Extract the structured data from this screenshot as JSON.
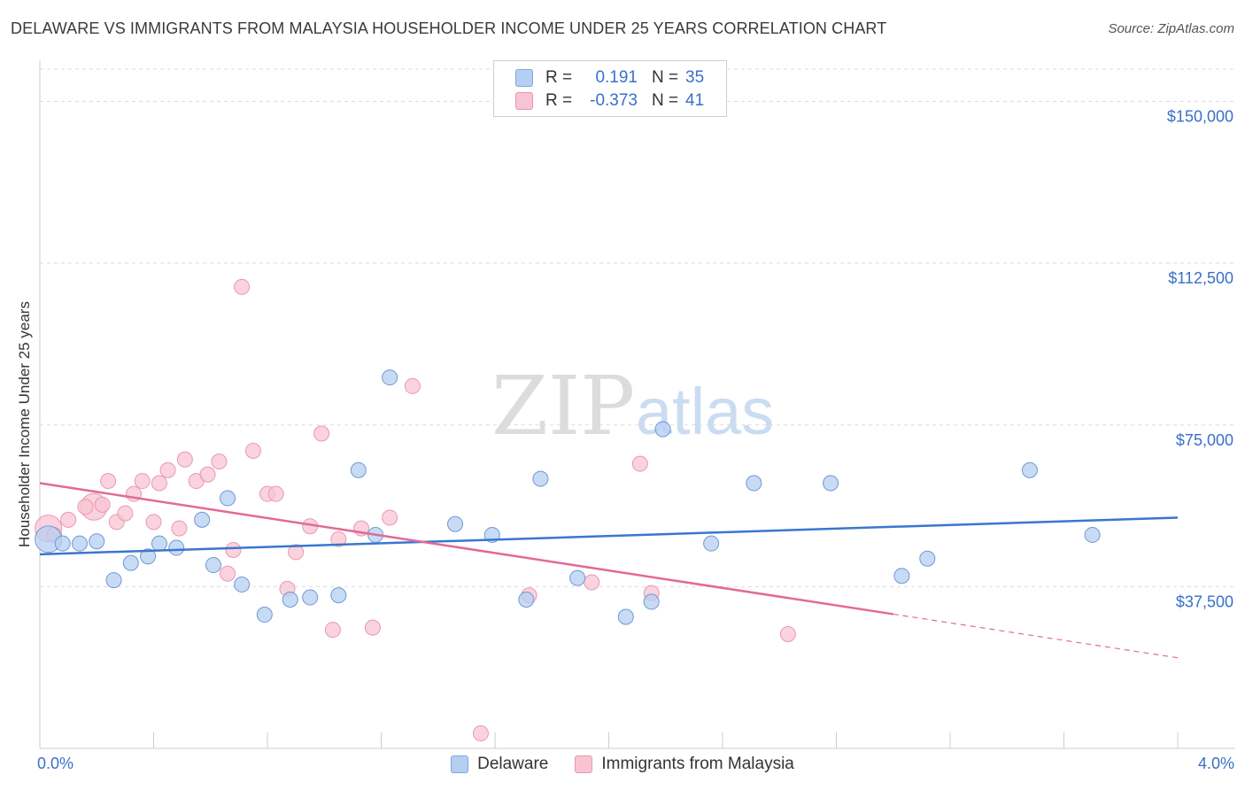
{
  "title": "DELAWARE VS IMMIGRANTS FROM MALAYSIA HOUSEHOLDER INCOME UNDER 25 YEARS CORRELATION CHART",
  "source": "Source: ZipAtlas.com",
  "watermark": {
    "part1": "ZIP",
    "part2": "atlas"
  },
  "legend": {
    "r_label": "R =",
    "n_label": "N =",
    "rows": [
      {
        "r": "0.191",
        "n": "35",
        "color": "#b5cff2"
      },
      {
        "r": "-0.373",
        "n": "41",
        "color": "#f8c4d4"
      }
    ]
  },
  "x_labels": {
    "min": "0.0%",
    "max": "4.0%"
  },
  "colors": {
    "blue_line": "#3a76cf",
    "pink_line": "#e26a97",
    "blue_fill": "#b5cff2",
    "pink_fill": "#f8c4d4",
    "tick_text": "#3a70c8"
  },
  "chart_data": {
    "type": "scatter",
    "xlabel": "",
    "ylabel": "Householder Income Under 25 years",
    "xlim": [
      0,
      4.0
    ],
    "ylim": [
      0,
      157500
    ],
    "x_unit": "%",
    "y_ticks": [
      {
        "value": 37500,
        "label": "$37,500"
      },
      {
        "value": 75000,
        "label": "$75,000"
      },
      {
        "value": 112500,
        "label": "$112,500"
      },
      {
        "value": 150000,
        "label": "$150,000"
      }
    ],
    "grid": true,
    "legend_position": "bottom-center",
    "series": [
      {
        "name": "Delaware",
        "color": "#b5cff2",
        "stroke": "#6f98d6",
        "trend": {
          "x": [
            0.0,
            4.0
          ],
          "y": [
            45000,
            53500
          ],
          "dashed_from": null
        },
        "points": [
          {
            "x": 0.03,
            "y": 48500,
            "big": true
          },
          {
            "x": 0.08,
            "y": 47500
          },
          {
            "x": 0.14,
            "y": 47500
          },
          {
            "x": 0.2,
            "y": 48000
          },
          {
            "x": 0.26,
            "y": 39000
          },
          {
            "x": 0.32,
            "y": 43000
          },
          {
            "x": 0.38,
            "y": 44500
          },
          {
            "x": 0.42,
            "y": 47500
          },
          {
            "x": 0.48,
            "y": 46500
          },
          {
            "x": 0.57,
            "y": 53000
          },
          {
            "x": 0.61,
            "y": 42500
          },
          {
            "x": 0.66,
            "y": 58000
          },
          {
            "x": 0.71,
            "y": 38000
          },
          {
            "x": 0.79,
            "y": 31000
          },
          {
            "x": 0.88,
            "y": 34500
          },
          {
            "x": 0.95,
            "y": 35000
          },
          {
            "x": 1.05,
            "y": 35500
          },
          {
            "x": 1.12,
            "y": 64500
          },
          {
            "x": 1.18,
            "y": 49500
          },
          {
            "x": 1.23,
            "y": 86000
          },
          {
            "x": 1.46,
            "y": 52000
          },
          {
            "x": 1.59,
            "y": 49500
          },
          {
            "x": 1.71,
            "y": 34500
          },
          {
            "x": 1.76,
            "y": 62500
          },
          {
            "x": 1.89,
            "y": 39500
          },
          {
            "x": 2.06,
            "y": 30500
          },
          {
            "x": 2.15,
            "y": 34000
          },
          {
            "x": 2.19,
            "y": 74000
          },
          {
            "x": 2.36,
            "y": 47500
          },
          {
            "x": 2.51,
            "y": 61500
          },
          {
            "x": 2.78,
            "y": 61500
          },
          {
            "x": 3.03,
            "y": 40000
          },
          {
            "x": 3.12,
            "y": 44000
          },
          {
            "x": 3.48,
            "y": 64500
          },
          {
            "x": 3.7,
            "y": 49500
          }
        ]
      },
      {
        "name": "Immigrants from Malaysia",
        "color": "#f8c4d4",
        "stroke": "#e898b0",
        "trend": {
          "x": [
            0.0,
            4.0
          ],
          "y": [
            61500,
            21000
          ],
          "dashed_from": 3.0
        },
        "points": [
          {
            "x": 0.03,
            "y": 51000,
            "big": true
          },
          {
            "x": 0.1,
            "y": 53000
          },
          {
            "x": 0.19,
            "y": 56000,
            "big": true
          },
          {
            "x": 0.22,
            "y": 56500
          },
          {
            "x": 0.24,
            "y": 62000
          },
          {
            "x": 0.27,
            "y": 52500
          },
          {
            "x": 0.3,
            "y": 54500
          },
          {
            "x": 0.33,
            "y": 59000
          },
          {
            "x": 0.36,
            "y": 62000
          },
          {
            "x": 0.4,
            "y": 52500
          },
          {
            "x": 0.42,
            "y": 61500
          },
          {
            "x": 0.45,
            "y": 64500
          },
          {
            "x": 0.49,
            "y": 51000
          },
          {
            "x": 0.51,
            "y": 67000
          },
          {
            "x": 0.55,
            "y": 62000
          },
          {
            "x": 0.59,
            "y": 63500
          },
          {
            "x": 0.63,
            "y": 66500
          },
          {
            "x": 0.66,
            "y": 40500
          },
          {
            "x": 0.68,
            "y": 46000
          },
          {
            "x": 0.71,
            "y": 107000
          },
          {
            "x": 0.75,
            "y": 69000
          },
          {
            "x": 0.8,
            "y": 59000
          },
          {
            "x": 0.83,
            "y": 59000
          },
          {
            "x": 0.87,
            "y": 37000
          },
          {
            "x": 0.9,
            "y": 45500
          },
          {
            "x": 0.95,
            "y": 51500
          },
          {
            "x": 0.99,
            "y": 73000
          },
          {
            "x": 1.03,
            "y": 27500
          },
          {
            "x": 1.05,
            "y": 48500
          },
          {
            "x": 1.13,
            "y": 51000
          },
          {
            "x": 1.17,
            "y": 28000
          },
          {
            "x": 1.23,
            "y": 53500
          },
          {
            "x": 1.31,
            "y": 84000
          },
          {
            "x": 1.55,
            "y": 3500
          },
          {
            "x": 1.72,
            "y": 35500
          },
          {
            "x": 1.94,
            "y": 38500
          },
          {
            "x": 2.15,
            "y": 36000
          },
          {
            "x": 2.11,
            "y": 66000
          },
          {
            "x": 2.63,
            "y": 26500
          },
          {
            "x": 0.05,
            "y": 49500
          },
          {
            "x": 0.16,
            "y": 56000
          }
        ]
      }
    ]
  }
}
